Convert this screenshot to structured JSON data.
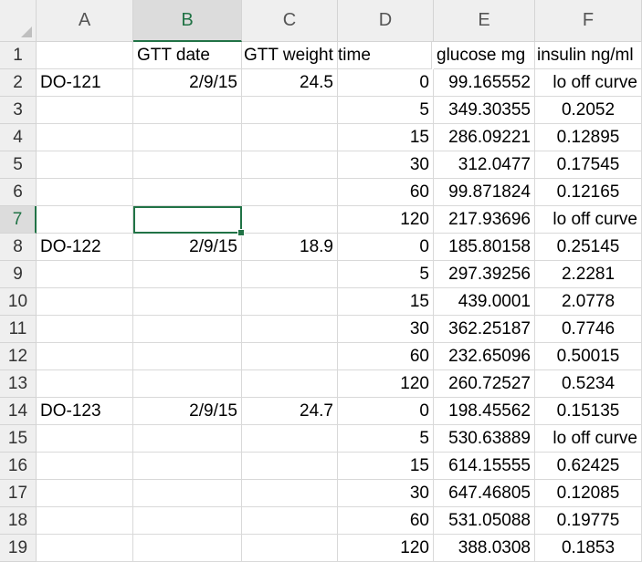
{
  "columns": [
    "A",
    "B",
    "C",
    "D",
    "E",
    "F"
  ],
  "active_cell": "B7",
  "rows": [
    {
      "num": "1",
      "A": "",
      "B": "GTT date",
      "C": "GTT weight",
      "D": "time",
      "E": "glucose mg",
      "F": "insulin ng/ml"
    },
    {
      "num": "2",
      "A": "DO-121",
      "B": "2/9/15",
      "C": "24.5",
      "D": "0",
      "E": "99.165552",
      "F": "lo off curve"
    },
    {
      "num": "3",
      "A": "",
      "B": "",
      "C": "",
      "D": "5",
      "E": "349.30355",
      "F": "0.2052"
    },
    {
      "num": "4",
      "A": "",
      "B": "",
      "C": "",
      "D": "15",
      "E": "286.09221",
      "F": "0.12895"
    },
    {
      "num": "5",
      "A": "",
      "B": "",
      "C": "",
      "D": "30",
      "E": "312.0477",
      "F": "0.17545"
    },
    {
      "num": "6",
      "A": "",
      "B": "",
      "C": "",
      "D": "60",
      "E": "99.871824",
      "F": "0.12165"
    },
    {
      "num": "7",
      "A": "",
      "B": "",
      "C": "",
      "D": "120",
      "E": "217.93696",
      "F": "lo off curve"
    },
    {
      "num": "8",
      "A": "DO-122",
      "B": "2/9/15",
      "C": "18.9",
      "D": "0",
      "E": "185.80158",
      "F": "0.25145"
    },
    {
      "num": "9",
      "A": "",
      "B": "",
      "C": "",
      "D": "5",
      "E": "297.39256",
      "F": "2.2281"
    },
    {
      "num": "10",
      "A": "",
      "B": "",
      "C": "",
      "D": "15",
      "E": "439.0001",
      "F": "2.0778"
    },
    {
      "num": "11",
      "A": "",
      "B": "",
      "C": "",
      "D": "30",
      "E": "362.25187",
      "F": "0.7746"
    },
    {
      "num": "12",
      "A": "",
      "B": "",
      "C": "",
      "D": "60",
      "E": "232.65096",
      "F": "0.50015"
    },
    {
      "num": "13",
      "A": "",
      "B": "",
      "C": "",
      "D": "120",
      "E": "260.72527",
      "F": "0.5234"
    },
    {
      "num": "14",
      "A": "DO-123",
      "B": "2/9/15",
      "C": "24.7",
      "D": "0",
      "E": "198.45562",
      "F": "0.15135"
    },
    {
      "num": "15",
      "A": "",
      "B": "",
      "C": "",
      "D": "5",
      "E": "530.63889",
      "F": "lo off curve"
    },
    {
      "num": "16",
      "A": "",
      "B": "",
      "C": "",
      "D": "15",
      "E": "614.15555",
      "F": "0.62425"
    },
    {
      "num": "17",
      "A": "",
      "B": "",
      "C": "",
      "D": "30",
      "E": "647.46805",
      "F": "0.12085"
    },
    {
      "num": "18",
      "A": "",
      "B": "",
      "C": "",
      "D": "60",
      "E": "531.05088",
      "F": "0.19775"
    },
    {
      "num": "19",
      "A": "",
      "B": "",
      "C": "",
      "D": "120",
      "E": "388.0308",
      "F": "0.1853"
    }
  ],
  "colors": {
    "accent": "#217346",
    "header_bg": "#efefef",
    "gridline": "#d9d9d9"
  }
}
